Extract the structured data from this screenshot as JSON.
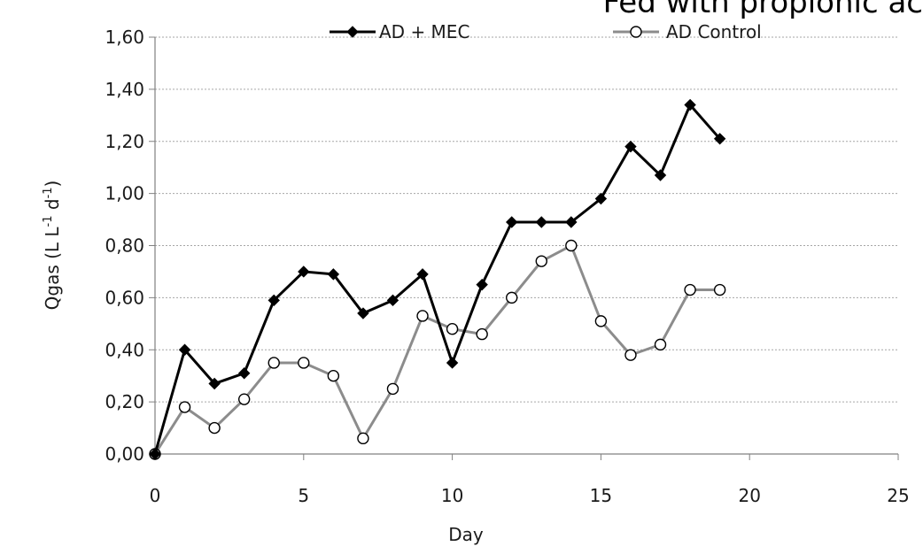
{
  "chart_data": {
    "type": "line",
    "title": "Fed with propionic ac",
    "xlabel": "Day",
    "ylabel_main": "Qgas (L L",
    "ylabel_sup1": "-1",
    "ylabel_mid": " d",
    "ylabel_sup2": "-1",
    "ylabel_end": ")",
    "xlim": [
      0,
      25
    ],
    "ylim": [
      0,
      1.6
    ],
    "x_ticks": [
      0,
      5,
      10,
      15,
      20,
      25
    ],
    "x_tick_labels": [
      "0",
      "5",
      "10",
      "15",
      "20",
      "25"
    ],
    "y_ticks": [
      0,
      0.2,
      0.4,
      0.6,
      0.8,
      1.0,
      1.2,
      1.4,
      1.6
    ],
    "y_tick_labels": [
      "0,00",
      "0,20",
      "0,40",
      "0,60",
      "0,80",
      "1,00",
      "1,20",
      "1,40",
      "1,60"
    ],
    "grid": "horizontal",
    "legend_position": "top",
    "series": [
      {
        "name": "AD + MEC",
        "color": "#000000",
        "marker": "diamond-filled",
        "x": [
          0,
          1,
          2,
          3,
          4,
          5,
          6,
          7,
          8,
          9,
          10,
          11,
          12,
          13,
          14,
          15,
          16,
          17,
          18,
          19
        ],
        "y": [
          0.0,
          0.4,
          0.27,
          0.31,
          0.59,
          0.7,
          0.69,
          0.54,
          0.59,
          0.69,
          0.35,
          0.65,
          0.89,
          0.89,
          0.89,
          0.98,
          1.18,
          1.07,
          1.34,
          1.21
        ]
      },
      {
        "name": "AD Control",
        "color": "#8c8c8c",
        "marker": "circle-open",
        "x": [
          0,
          1,
          2,
          3,
          4,
          5,
          6,
          7,
          8,
          9,
          10,
          11,
          12,
          13,
          14,
          15,
          16,
          17,
          18,
          19
        ],
        "y": [
          0.0,
          0.18,
          0.1,
          0.21,
          0.35,
          0.35,
          0.3,
          0.06,
          0.25,
          0.53,
          0.48,
          0.46,
          0.6,
          0.74,
          0.8,
          0.51,
          0.38,
          0.42,
          0.63,
          0.63
        ]
      }
    ]
  }
}
